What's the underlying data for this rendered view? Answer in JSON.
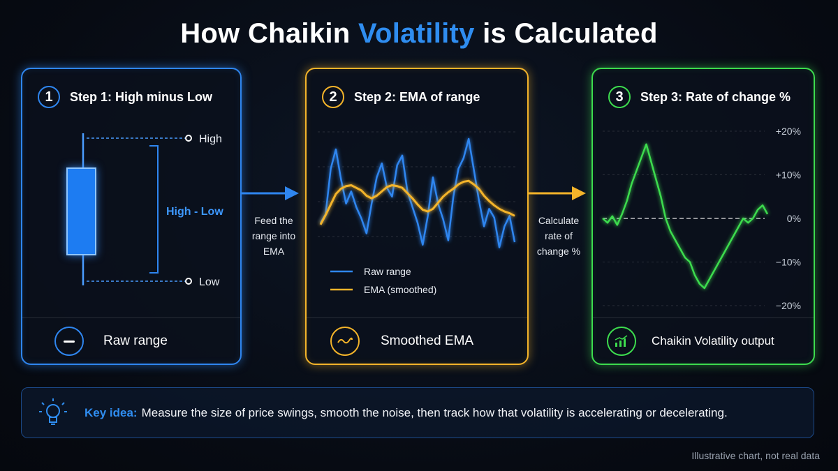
{
  "title": {
    "prefix": "How Chaikin",
    "accent": "Volatility",
    "suffix": "is Calculated"
  },
  "steps": [
    {
      "number": "1",
      "label": "Step 1: High minus Low",
      "footer": "Raw range",
      "footer_icon": "minus-icon"
    },
    {
      "number": "2",
      "label": "Step 2: EMA of range",
      "footer": "Smoothed EMA",
      "footer_icon": "wave-icon"
    },
    {
      "number": "3",
      "label": "Step 3: Rate of change %",
      "footer": "Chaikin Volatility output",
      "footer_icon": "bar-chart-icon"
    }
  ],
  "candle": {
    "high_label": "High",
    "low_label": "Low",
    "range_label": "High - Low"
  },
  "arrows": [
    {
      "lines": [
        "Feed the",
        "range into",
        "EMA"
      ]
    },
    {
      "lines": [
        "Calculate",
        "rate of",
        "change %"
      ]
    }
  ],
  "chart_data": [
    {
      "type": "line",
      "title": "",
      "series": [
        {
          "name": "Raw range",
          "color": "#2f86f0",
          "values": [
            2.0,
            3.0,
            8.2,
            10.4,
            7.0,
            4.2,
            5.6,
            3.8,
            2.5,
            0.8,
            4.2,
            7.2,
            8.8,
            6.0,
            5.0,
            8.6,
            9.7,
            5.6,
            3.8,
            2.0,
            -0.5,
            2.8,
            7.2,
            4.2,
            2.4,
            0.0,
            5.0,
            8.2,
            9.4,
            11.6,
            8.1,
            4.6,
            1.6,
            3.6,
            2.6,
            -0.8,
            1.6,
            2.8,
            -0.2
          ]
        },
        {
          "name": "EMA (smoothed)",
          "color": "#f4b42a",
          "values": [
            1.8,
            2.9,
            4.1,
            5.3,
            5.9,
            6.2,
            6.3,
            6.0,
            5.7,
            5.1,
            4.8,
            5.1,
            5.6,
            6.1,
            6.3,
            6.2,
            6.0,
            5.4,
            4.8,
            4.1,
            3.5,
            3.3,
            3.6,
            4.3,
            5.0,
            5.5,
            5.9,
            6.4,
            6.7,
            6.8,
            6.4,
            5.9,
            5.1,
            4.5,
            4.0,
            3.6,
            3.3,
            3.1,
            2.8
          ]
        }
      ],
      "legend_position": "bottom-left"
    },
    {
      "type": "line",
      "title": "",
      "y_ticks": [
        "+20%",
        "+10%",
        "0%",
        "−10%",
        "−20%"
      ],
      "ylim": [
        -20,
        20
      ],
      "zero_line": true,
      "series": [
        {
          "name": "",
          "color": "#3ddc4e",
          "values": [
            0,
            -1,
            0.5,
            -1.5,
            1,
            4,
            8,
            11,
            14,
            17,
            13,
            9,
            5,
            0,
            -3,
            -5,
            -7,
            -9,
            -10,
            -13,
            -15,
            -16,
            -14,
            -12,
            -10,
            -8,
            -6,
            -4,
            -2,
            0,
            -1,
            0,
            2,
            3,
            1
          ]
        }
      ]
    }
  ],
  "key_idea": {
    "label": "Key idea:",
    "text": "Measure the size of price swings, smooth the noise, then track how that volatility is accelerating or decelerating."
  },
  "footnote": "Illustrative chart, not real data"
}
